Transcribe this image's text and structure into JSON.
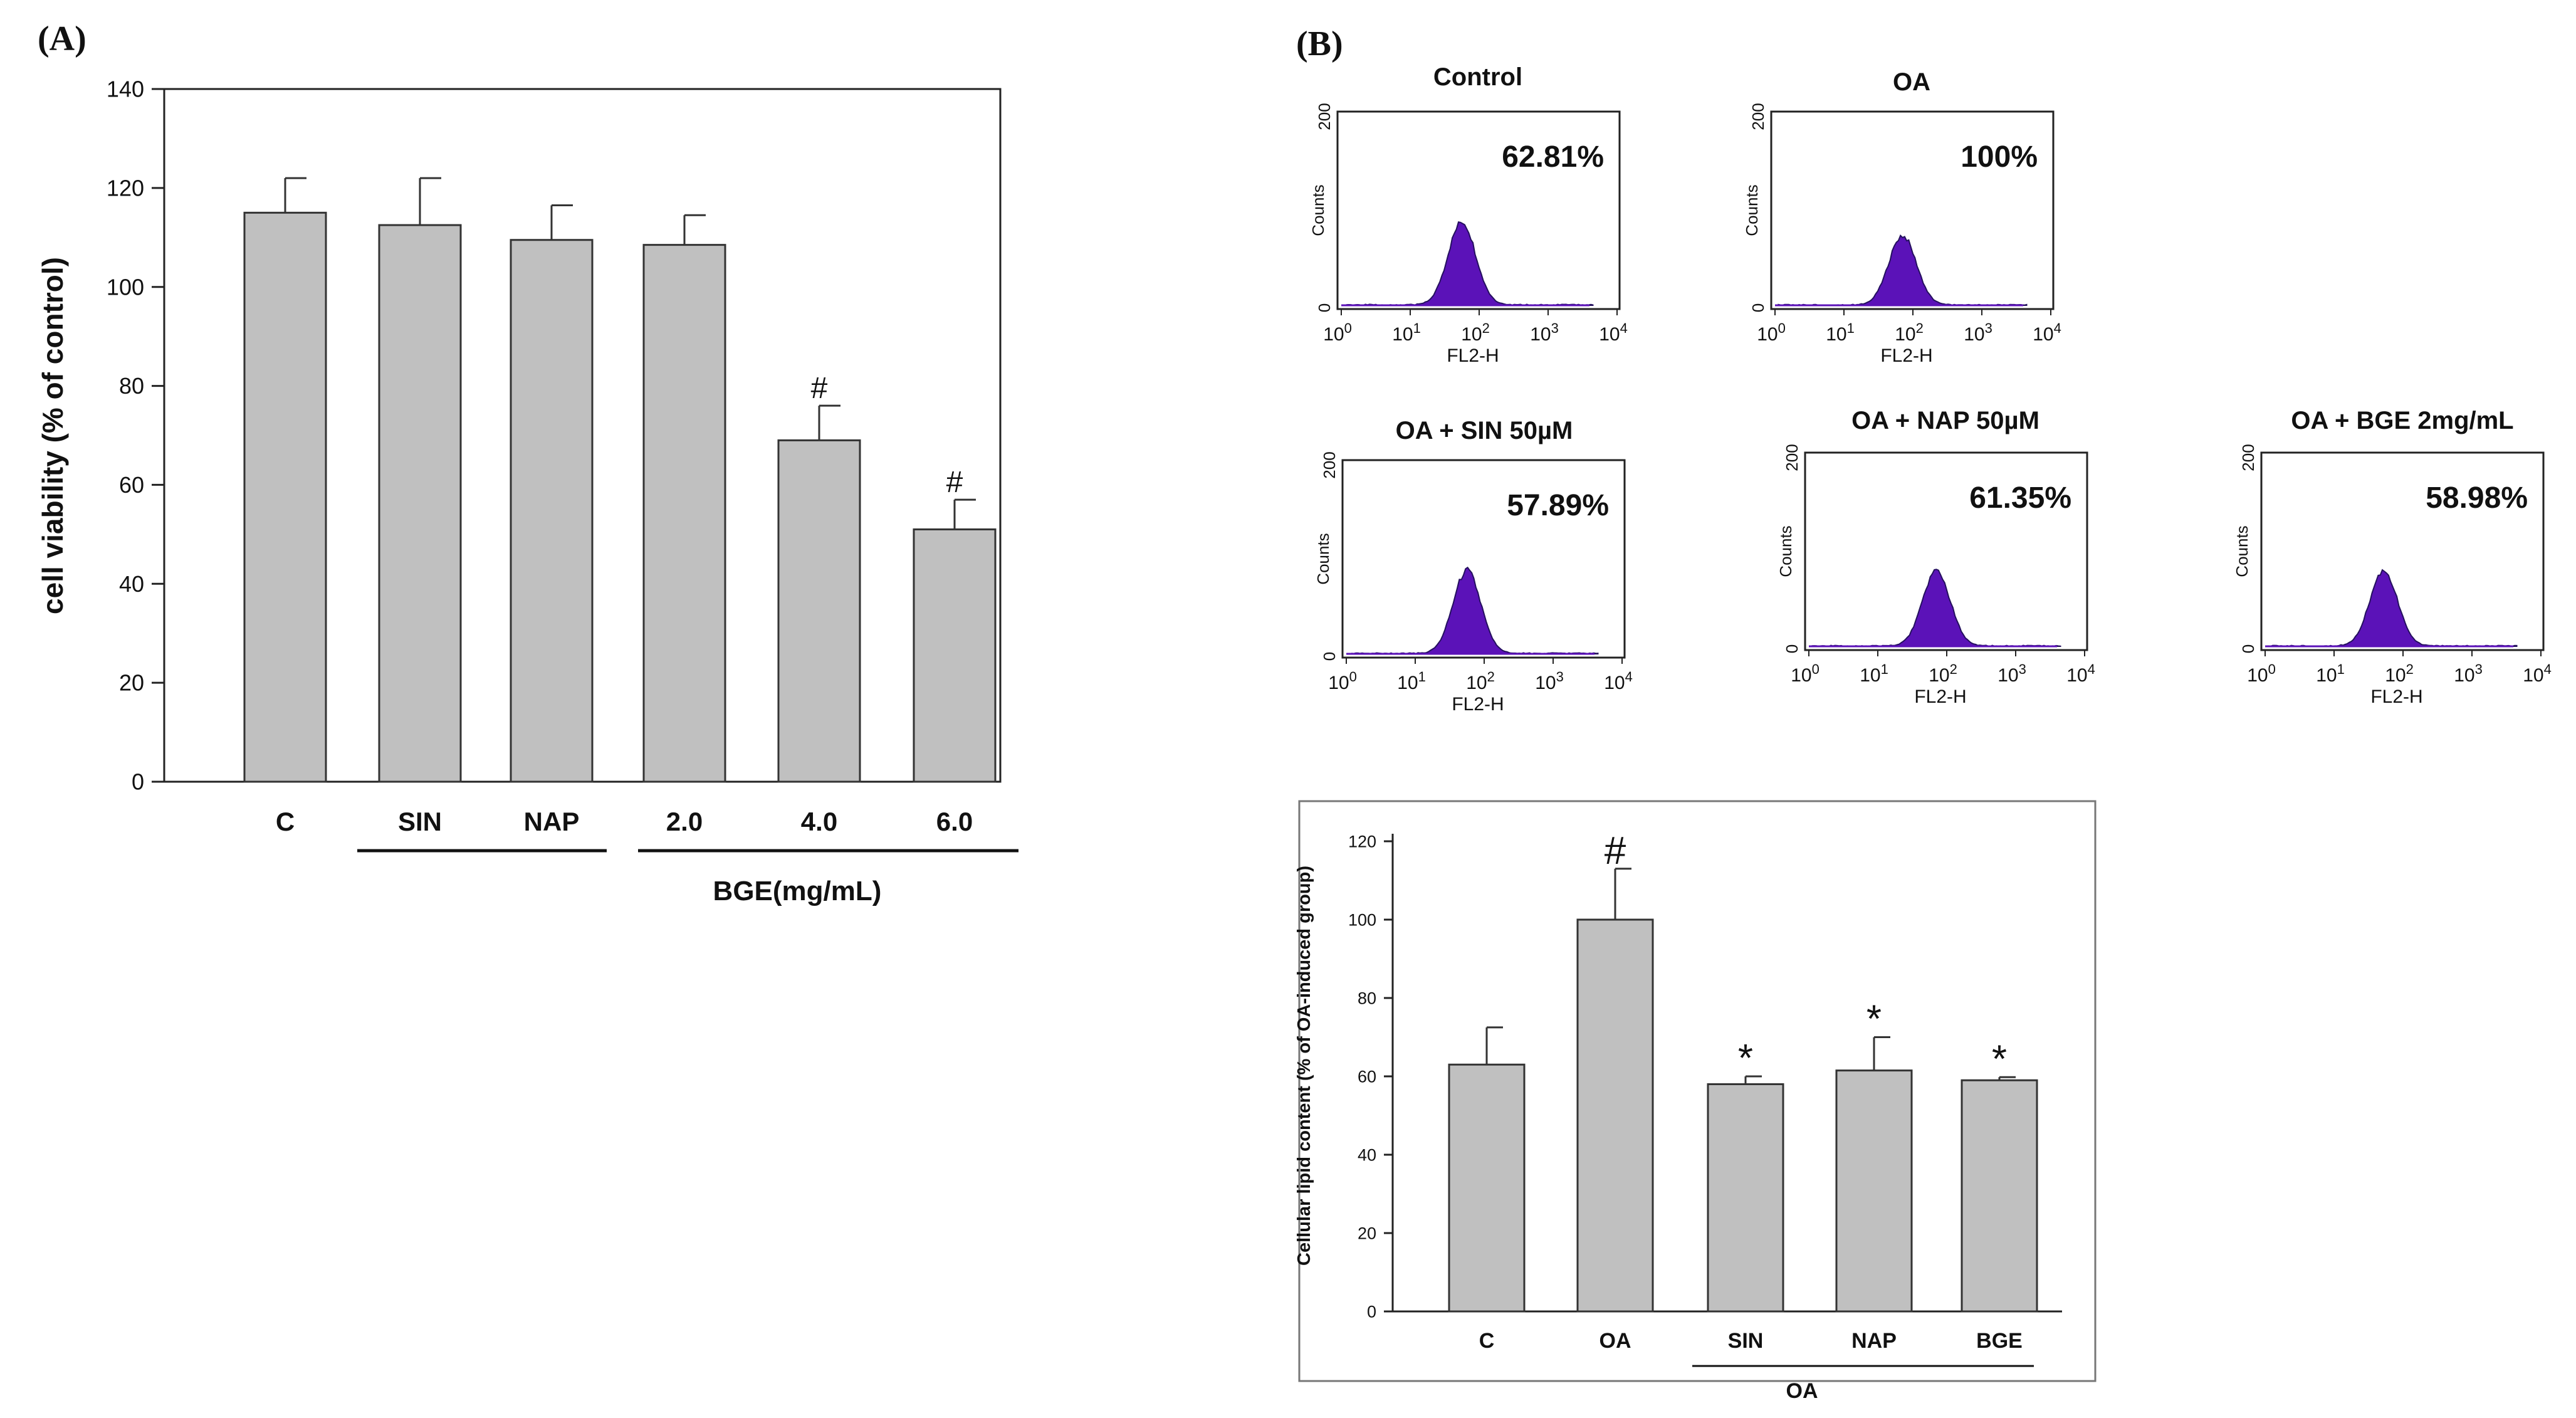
{
  "panel_a_label": "(A)",
  "panel_b_label": "(B)",
  "colors": {
    "bar_fill": "#c0c0c0",
    "bar_stroke": "#333333",
    "histogram_fill": "#5b12b8",
    "histogram_stroke": "#24105e",
    "text": "#111111",
    "frame": "#222222"
  },
  "chart_data": [
    {
      "id": "cell-viability",
      "type": "bar",
      "title": "",
      "xlabel": "",
      "ylabel": "cell viability (% of control)",
      "ylim": [
        0,
        140
      ],
      "yticks": [
        "0",
        "20",
        "40",
        "60",
        "80",
        "100",
        "120",
        "140"
      ],
      "ytick_values": [
        0,
        20,
        40,
        60,
        80,
        100,
        120,
        140
      ],
      "categories": [
        "C",
        "SIN",
        "NAP",
        "2.0",
        "4.0",
        "6.0"
      ],
      "values": [
        115,
        112.5,
        109.5,
        108.5,
        69,
        51
      ],
      "errors": [
        7,
        9.5,
        7,
        6,
        7,
        6
      ],
      "annotations": [
        "",
        "",
        "",
        "",
        "#",
        "#"
      ],
      "group_label": "BGE(mg/mL)",
      "grid": false
    },
    {
      "id": "lipid-content",
      "type": "bar",
      "title": "",
      "xlabel": "",
      "ylabel": "Cellular  lipid content (% of OA-induced group)",
      "ylim": [
        0,
        120
      ],
      "yticks": [
        "0",
        "20",
        "40",
        "60",
        "80",
        "100",
        "120"
      ],
      "ytick_values": [
        0,
        20,
        40,
        60,
        80,
        100,
        120
      ],
      "categories": [
        "C",
        "OA",
        "SIN",
        "NAP",
        "BGE"
      ],
      "values": [
        63,
        100,
        58,
        61.5,
        59
      ],
      "errors": [
        9.5,
        13,
        2,
        8.5,
        0.8
      ],
      "annotations": [
        "",
        "#",
        "*",
        "*",
        "*"
      ],
      "group_label": "OA",
      "grid": false
    },
    {
      "id": "flow-histograms",
      "type": "area",
      "ylabel": "Counts",
      "xlabel": "FL2-H",
      "y_top_label": "200",
      "y_bottom_label": "0",
      "x_tick_bases": [
        "10",
        "10",
        "10",
        "10",
        "10"
      ],
      "x_tick_exponents": [
        "0",
        "1",
        "2",
        "3",
        "4"
      ],
      "histograms": [
        {
          "name": "Control",
          "percent": "62.81%",
          "peak_log10": 1.75,
          "peak_height": 0.42
        },
        {
          "name": "OA",
          "percent": "100%",
          "peak_log10": 1.85,
          "peak_height": 0.35
        },
        {
          "name": "OA + SIN 50µM",
          "percent": "57.89%",
          "peak_log10": 1.75,
          "peak_height": 0.42
        },
        {
          "name": "OA + NAP 50µM",
          "percent": "61.35%",
          "peak_log10": 1.85,
          "peak_height": 0.38
        },
        {
          "name": "OA + BGE 2mg/mL",
          "percent": "58.98%",
          "peak_log10": 1.72,
          "peak_height": 0.38
        }
      ]
    }
  ]
}
